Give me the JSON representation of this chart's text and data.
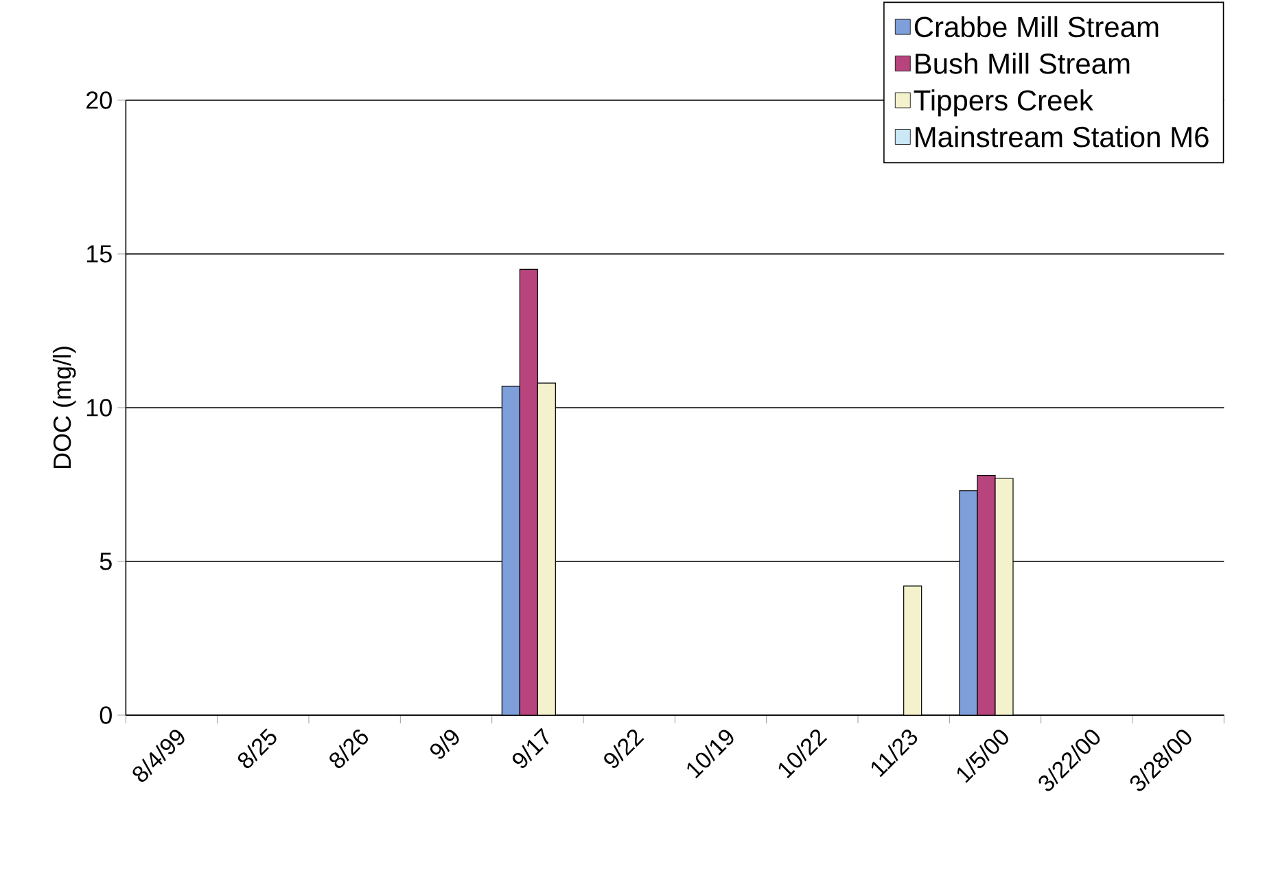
{
  "chart_data": {
    "type": "bar",
    "ylabel": "DOC (mg/l)",
    "categories": [
      "8/4/99",
      "8/25",
      "8/26",
      "9/9",
      "9/17",
      "9/22",
      "10/19",
      "10/22",
      "11/23",
      "1/5/00",
      "3/22/00",
      "3/28/00"
    ],
    "series": [
      {
        "name": "Crabbe Mill Stream",
        "color": "#7f9fdb",
        "values": [
          null,
          null,
          null,
          null,
          10.7,
          null,
          null,
          null,
          null,
          7.3,
          null,
          null
        ]
      },
      {
        "name": "Bush Mill Stream",
        "color": "#b8447e",
        "values": [
          null,
          null,
          null,
          null,
          14.5,
          null,
          null,
          null,
          null,
          7.8,
          null,
          null
        ]
      },
      {
        "name": "Tippers Creek",
        "color": "#f4f2cc",
        "values": [
          null,
          null,
          null,
          null,
          10.8,
          null,
          null,
          null,
          4.2,
          7.7,
          null,
          null
        ]
      },
      {
        "name": "Mainstream Station M6",
        "color": "#cbe8f6",
        "values": [
          null,
          null,
          null,
          null,
          null,
          null,
          null,
          null,
          null,
          null,
          null,
          null
        ]
      }
    ],
    "ylim": [
      0,
      20
    ],
    "yticks": [
      0,
      5,
      10,
      15,
      20
    ],
    "grid": "y",
    "legend": "top right"
  }
}
